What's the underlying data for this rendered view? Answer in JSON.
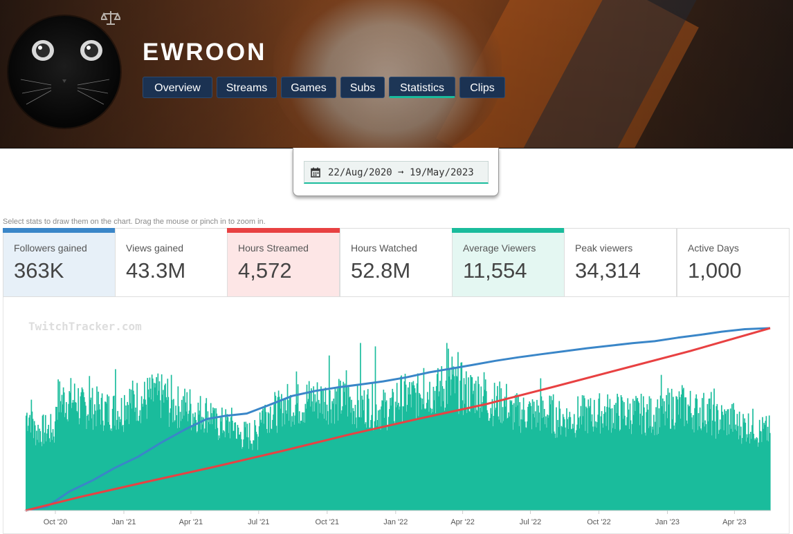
{
  "channel": {
    "name": "EWROON"
  },
  "tabs": [
    {
      "label": "Overview"
    },
    {
      "label": "Streams"
    },
    {
      "label": "Games"
    },
    {
      "label": "Subs"
    },
    {
      "label": "Statistics",
      "active": true
    },
    {
      "label": "Clips"
    }
  ],
  "date_range": {
    "text": "22/Aug/2020 ➞ 19/May/2023"
  },
  "hint": "Select stats to draw them on the chart. Drag the mouse or pinch in to zoom in.",
  "stats": [
    {
      "label": "Followers gained",
      "value": "363K",
      "selected": true,
      "accent": "#3a86c8",
      "bg": "#e7f0f8"
    },
    {
      "label": "Views gained",
      "value": "43.3M",
      "selected": false
    },
    {
      "label": "Hours Streamed",
      "value": "4,572",
      "selected": true,
      "accent": "#e84142",
      "bg": "#fde6e6"
    },
    {
      "label": "Hours Watched",
      "value": "52.8M",
      "selected": false
    },
    {
      "label": "Average Viewers",
      "value": "11,554",
      "selected": true,
      "accent": "#1abc9c",
      "bg": "#e4f7f2"
    },
    {
      "label": "Peak viewers",
      "value": "34,314",
      "selected": false
    },
    {
      "label": "Active Days",
      "value": "1,000",
      "selected": false
    }
  ],
  "colors": {
    "followers": "#3a86c8",
    "hours": "#e84142",
    "viewers": "#1abc9c",
    "tab_bg": "#1b3252",
    "tab_active_underline": "#1abc9c"
  },
  "icons": {
    "scales": "scales-icon",
    "calendar": "calendar-icon"
  },
  "chart_data": {
    "type": "bar",
    "watermark": "TwitchTracker.com",
    "x_range": [
      "2020-08-22",
      "2023-05-19"
    ],
    "x_ticks": [
      {
        "date": "2020-10-01",
        "label": "Oct '20"
      },
      {
        "date": "2021-01-01",
        "label": "Jan '21"
      },
      {
        "date": "2021-04-01",
        "label": "Apr '21"
      },
      {
        "date": "2021-07-01",
        "label": "Jul '21"
      },
      {
        "date": "2021-10-01",
        "label": "Oct '21"
      },
      {
        "date": "2022-01-01",
        "label": "Jan '22"
      },
      {
        "date": "2022-04-01",
        "label": "Apr '22"
      },
      {
        "date": "2022-07-01",
        "label": "Jul '22"
      },
      {
        "date": "2022-10-01",
        "label": "Oct '22"
      },
      {
        "date": "2023-01-01",
        "label": "Jan '23"
      },
      {
        "date": "2023-04-01",
        "label": "Apr '23"
      }
    ],
    "axes_labels_visible": false,
    "grid": false,
    "series": [
      {
        "name": "Average Viewers",
        "kind": "bar",
        "y_max": 16000,
        "monthly_level": [
          [
            "2020-09",
            6700
          ],
          [
            "2020-10",
            9300
          ],
          [
            "2020-11",
            8600
          ],
          [
            "2020-12",
            8400
          ],
          [
            "2021-01",
            9200
          ],
          [
            "2021-02",
            9500
          ],
          [
            "2021-03",
            8700
          ],
          [
            "2021-04",
            8200
          ],
          [
            "2021-05",
            7200
          ],
          [
            "2021-06",
            6300
          ],
          [
            "2021-07",
            8300
          ],
          [
            "2021-08",
            8900
          ],
          [
            "2021-09",
            9300
          ],
          [
            "2021-10",
            9200
          ],
          [
            "2021-11",
            8800
          ],
          [
            "2021-12",
            8500
          ],
          [
            "2022-01",
            9500
          ],
          [
            "2022-02",
            10000
          ],
          [
            "2022-03",
            10300
          ],
          [
            "2022-04",
            9900
          ],
          [
            "2022-05",
            9000
          ],
          [
            "2022-06",
            8200
          ],
          [
            "2022-07",
            8100
          ],
          [
            "2022-08",
            7700
          ],
          [
            "2022-09",
            8000
          ],
          [
            "2022-10",
            8200
          ],
          [
            "2022-11",
            8100
          ],
          [
            "2022-12",
            8000
          ],
          [
            "2023-01",
            8600
          ],
          [
            "2023-02",
            8300
          ],
          [
            "2023-03",
            7600
          ],
          [
            "2023-04",
            7100
          ],
          [
            "2023-05",
            6600
          ]
        ],
        "spikes": [
          [
            "2020-11-15",
            11800
          ],
          [
            "2020-12-20",
            12400
          ],
          [
            "2021-02-10",
            11200
          ],
          [
            "2021-03-05",
            11900
          ],
          [
            "2021-08-20",
            12200
          ],
          [
            "2021-10-03",
            13600
          ],
          [
            "2021-10-26",
            12300
          ],
          [
            "2021-11-14",
            14700
          ],
          [
            "2021-12-04",
            14400
          ],
          [
            "2022-02-07",
            12500
          ],
          [
            "2022-03-10",
            14700
          ],
          [
            "2022-03-12",
            14200
          ],
          [
            "2022-03-17",
            13500
          ],
          [
            "2022-03-25",
            13900
          ],
          [
            "2022-05-01",
            11500
          ],
          [
            "2022-07-14",
            11600
          ],
          [
            "2022-12-23",
            11900
          ],
          [
            "2023-01-20",
            11000
          ],
          [
            "2023-03-04",
            10700
          ]
        ]
      },
      {
        "name": "Followers gained",
        "kind": "line",
        "color": "#3a86c8",
        "y_max": 363000,
        "points": [
          [
            "2020-08-22",
            0
          ],
          [
            "2020-09-20",
            8000
          ],
          [
            "2020-10-20",
            38000
          ],
          [
            "2020-11-20",
            60000
          ],
          [
            "2020-12-20",
            85000
          ],
          [
            "2021-01-20",
            107000
          ],
          [
            "2021-02-20",
            135000
          ],
          [
            "2021-03-25",
            162000
          ],
          [
            "2021-04-22",
            182000
          ],
          [
            "2021-05-15",
            188000
          ],
          [
            "2021-06-15",
            193000
          ],
          [
            "2021-07-15",
            210000
          ],
          [
            "2021-08-15",
            228000
          ],
          [
            "2021-09-15",
            238000
          ],
          [
            "2021-10-15",
            245000
          ],
          [
            "2021-11-15",
            251000
          ],
          [
            "2021-12-15",
            257000
          ],
          [
            "2022-01-15",
            265000
          ],
          [
            "2022-02-15",
            275000
          ],
          [
            "2022-03-15",
            282000
          ],
          [
            "2022-04-15",
            290000
          ],
          [
            "2022-05-15",
            298000
          ],
          [
            "2022-06-15",
            305000
          ],
          [
            "2022-07-15",
            311000
          ],
          [
            "2022-08-15",
            317000
          ],
          [
            "2022-09-15",
            323000
          ],
          [
            "2022-10-15",
            328000
          ],
          [
            "2022-11-15",
            333000
          ],
          [
            "2022-12-15",
            337000
          ],
          [
            "2023-01-15",
            344000
          ],
          [
            "2023-02-15",
            350000
          ],
          [
            "2023-03-15",
            356000
          ],
          [
            "2023-04-15",
            361000
          ],
          [
            "2023-05-19",
            363000
          ]
        ]
      },
      {
        "name": "Hours Streamed",
        "kind": "line",
        "color": "#e84142",
        "y_max": 4572,
        "points": [
          [
            "2020-08-22",
            0
          ],
          [
            "2020-11-01",
            330
          ],
          [
            "2021-02-01",
            720
          ],
          [
            "2021-05-01",
            1090
          ],
          [
            "2021-08-01",
            1490
          ],
          [
            "2021-11-01",
            1910
          ],
          [
            "2022-02-01",
            2300
          ],
          [
            "2022-05-01",
            2660
          ],
          [
            "2022-08-01",
            3100
          ],
          [
            "2022-11-01",
            3550
          ],
          [
            "2023-02-01",
            4000
          ],
          [
            "2023-05-19",
            4572
          ]
        ]
      }
    ]
  }
}
